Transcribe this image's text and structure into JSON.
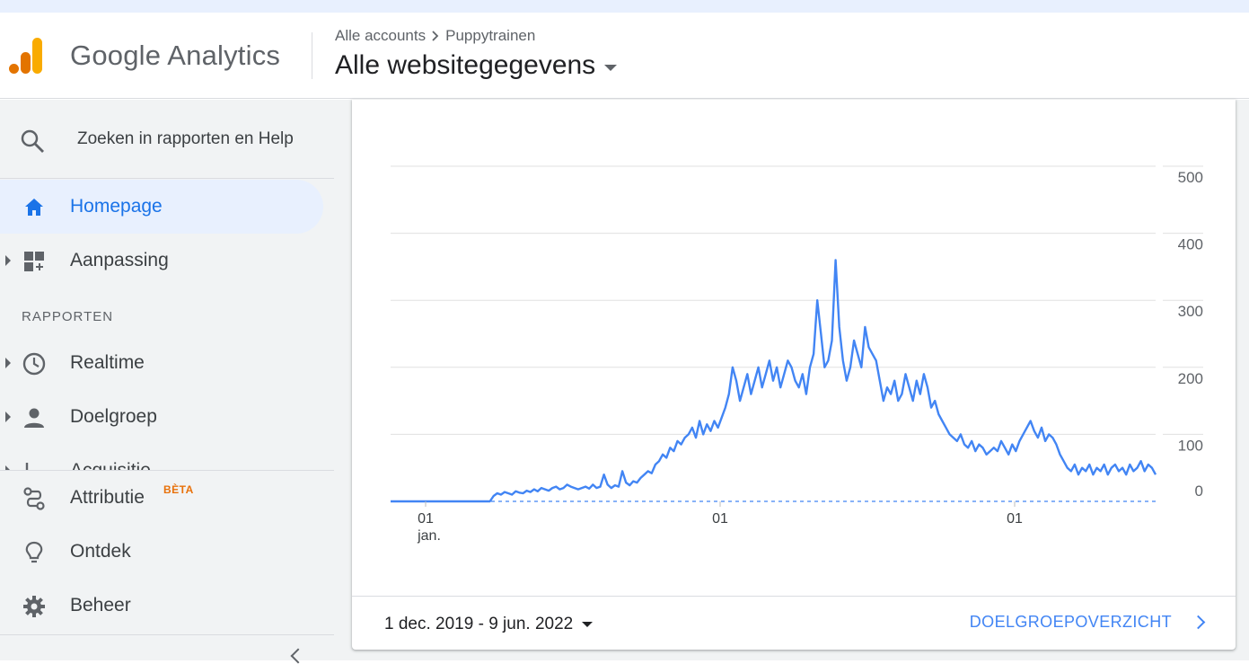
{
  "header": {
    "product_name": "Google Analytics",
    "breadcrumb": {
      "account": "Alle accounts",
      "property": "Puppytrainen"
    },
    "view_name": "Alle websitegegevens"
  },
  "sidebar": {
    "search_placeholder": "Zoeken in rapporten en Help",
    "items": [
      {
        "label": "Homepage",
        "icon": "home-icon",
        "active": true
      },
      {
        "label": "Aanpassing",
        "icon": "customization-icon"
      }
    ],
    "section_title": "RAPPORTEN",
    "reports": [
      {
        "label": "Realtime",
        "icon": "clock-icon"
      },
      {
        "label": "Doelgroep",
        "icon": "person-icon"
      },
      {
        "label": "Acquisitie",
        "icon": "acquisition-icon"
      }
    ],
    "bottom": [
      {
        "label": "Attributie",
        "icon": "attribution-icon",
        "badge": "BÈTA"
      },
      {
        "label": "Ontdek",
        "icon": "lightbulb-icon"
      },
      {
        "label": "Beheer",
        "icon": "gear-icon"
      }
    ]
  },
  "colors": {
    "accent": "#1a73e8",
    "line": "#4285f4",
    "badge": "#e8710a"
  },
  "chart_data": {
    "type": "line",
    "y_ticks": [
      "500",
      "400",
      "300",
      "200",
      "100",
      "0"
    ],
    "ylim": [
      0,
      500
    ],
    "x_tick_labels": [
      {
        "day": "01",
        "month": "jan."
      },
      {
        "day": "01",
        "month": ""
      },
      {
        "day": "01",
        "month": ""
      }
    ],
    "grid": true,
    "series": [
      {
        "values": [
          0,
          0,
          0,
          0,
          0,
          0,
          0,
          0,
          0,
          0,
          0,
          0,
          0,
          0,
          0,
          0,
          0,
          0,
          0,
          0,
          0,
          0,
          0,
          0,
          0,
          0,
          0,
          0,
          8,
          12,
          10,
          14,
          12,
          10,
          15,
          13,
          12,
          16,
          14,
          18,
          15,
          20,
          18,
          16,
          20,
          22,
          18,
          20,
          25,
          22,
          20,
          18,
          20,
          22,
          19,
          25,
          20,
          22,
          40,
          25,
          20,
          24,
          22,
          45,
          28,
          24,
          30,
          28,
          35,
          40,
          45,
          42,
          55,
          60,
          70,
          65,
          80,
          75,
          90,
          85,
          95,
          100,
          110,
          95,
          120,
          100,
          115,
          105,
          120,
          110,
          125,
          140,
          160,
          200,
          180,
          150,
          170,
          190,
          160,
          180,
          200,
          170,
          190,
          210,
          180,
          200,
          170,
          190,
          210,
          200,
          180,
          170,
          190,
          160,
          200,
          220,
          300,
          250,
          200,
          210,
          240,
          360,
          260,
          210,
          180,
          200,
          240,
          220,
          200,
          260,
          230,
          220,
          210,
          180,
          150,
          170,
          160,
          180,
          150,
          160,
          190,
          170,
          150,
          180,
          160,
          190,
          170,
          140,
          150,
          130,
          120,
          110,
          100,
          95,
          90,
          100,
          85,
          80,
          90,
          75,
          85,
          80,
          70,
          75,
          80,
          75,
          90,
          80,
          70,
          85,
          75,
          90,
          100,
          110,
          120,
          105,
          95,
          110,
          90,
          100,
          95,
          85,
          70,
          60,
          50,
          45,
          55,
          40,
          50,
          45,
          55,
          40,
          50,
          45,
          55,
          40,
          50,
          55,
          45,
          50,
          40,
          55,
          45,
          50,
          60,
          45,
          55,
          50,
          40
        ]
      }
    ]
  },
  "footer": {
    "date_range": "1 dec. 2019 - 9 jun. 2022",
    "overview_link": "DOELGROEPOVERZICHT"
  }
}
